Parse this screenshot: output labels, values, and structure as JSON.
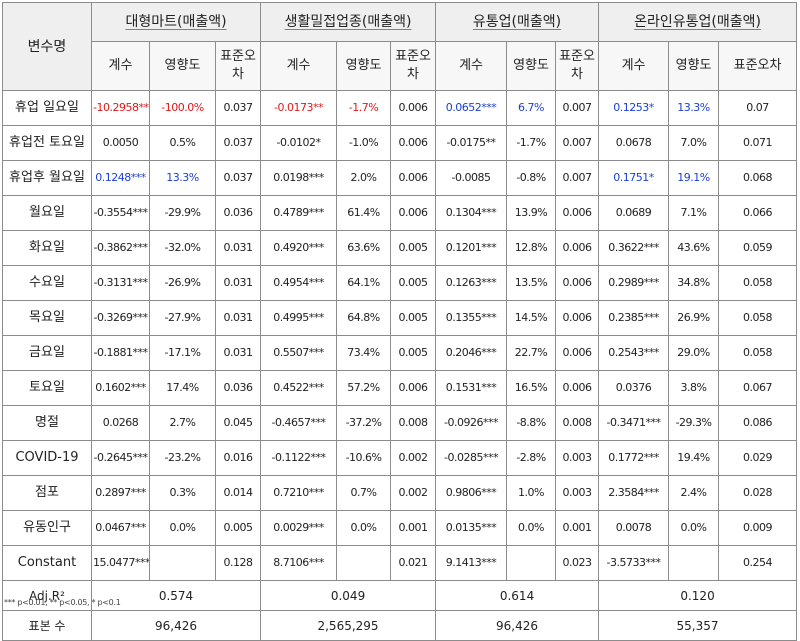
{
  "headers": {
    "variable": "변수명",
    "groups": [
      "대형마트(매출액)",
      "생활밀접업종(매출액)",
      "유통업(매출액)",
      "온라인유통업(매출액)"
    ],
    "coef": "계수",
    "effect_large": "영향도",
    "effect_split": "영향도",
    "se": "표준오차"
  },
  "rows": [
    {
      "label": "휴업 일요일",
      "cells": [
        [
          "-10.2958***",
          "red"
        ],
        [
          "-100.0%",
          "red"
        ],
        [
          "0.037",
          ""
        ],
        [
          "-0.0173**",
          "red"
        ],
        [
          "-1.7%",
          "red"
        ],
        [
          "0.006",
          ""
        ],
        [
          "0.0652***",
          "blue"
        ],
        [
          "6.7%",
          "blue"
        ],
        [
          "0.007",
          ""
        ],
        [
          "0.1253*",
          "blue"
        ],
        [
          "13.3%",
          "blue"
        ],
        [
          "0.07",
          ""
        ]
      ]
    },
    {
      "label": "휴업전 토요일",
      "cells": [
        [
          "0.0050",
          ""
        ],
        [
          "0.5%",
          ""
        ],
        [
          "0.037",
          ""
        ],
        [
          "-0.0102*",
          ""
        ],
        [
          "-1.0%",
          ""
        ],
        [
          "0.006",
          ""
        ],
        [
          "-0.0175**",
          ""
        ],
        [
          "-1.7%",
          ""
        ],
        [
          "0.007",
          ""
        ],
        [
          "0.0678",
          ""
        ],
        [
          "7.0%",
          ""
        ],
        [
          "0.071",
          ""
        ]
      ]
    },
    {
      "label": "휴업후 월요일",
      "cells": [
        [
          "0.1248***",
          "blue"
        ],
        [
          "13.3%",
          "blue"
        ],
        [
          "0.037",
          ""
        ],
        [
          "0.0198***",
          ""
        ],
        [
          "2.0%",
          ""
        ],
        [
          "0.006",
          ""
        ],
        [
          "-0.0085",
          ""
        ],
        [
          "-0.8%",
          ""
        ],
        [
          "0.007",
          ""
        ],
        [
          "0.1751*",
          "blue"
        ],
        [
          "19.1%",
          "blue"
        ],
        [
          "0.068",
          ""
        ]
      ]
    },
    {
      "label": "월요일",
      "cells": [
        [
          "-0.3554***",
          ""
        ],
        [
          "-29.9%",
          ""
        ],
        [
          "0.036",
          ""
        ],
        [
          "0.4789***",
          ""
        ],
        [
          "61.4%",
          ""
        ],
        [
          "0.006",
          ""
        ],
        [
          "0.1304***",
          ""
        ],
        [
          "13.9%",
          ""
        ],
        [
          "0.006",
          ""
        ],
        [
          "0.0689",
          ""
        ],
        [
          "7.1%",
          ""
        ],
        [
          "0.066",
          ""
        ]
      ]
    },
    {
      "label": "화요일",
      "cells": [
        [
          "-0.3862***",
          ""
        ],
        [
          "-32.0%",
          ""
        ],
        [
          "0.031",
          ""
        ],
        [
          "0.4920***",
          ""
        ],
        [
          "63.6%",
          ""
        ],
        [
          "0.005",
          ""
        ],
        [
          "0.1201***",
          ""
        ],
        [
          "12.8%",
          ""
        ],
        [
          "0.006",
          ""
        ],
        [
          "0.3622***",
          ""
        ],
        [
          "43.6%",
          ""
        ],
        [
          "0.059",
          ""
        ]
      ]
    },
    {
      "label": "수요일",
      "cells": [
        [
          "-0.3131***",
          ""
        ],
        [
          "-26.9%",
          ""
        ],
        [
          "0.031",
          ""
        ],
        [
          "0.4954***",
          ""
        ],
        [
          "64.1%",
          ""
        ],
        [
          "0.005",
          ""
        ],
        [
          "0.1263***",
          ""
        ],
        [
          "13.5%",
          ""
        ],
        [
          "0.006",
          ""
        ],
        [
          "0.2989***",
          ""
        ],
        [
          "34.8%",
          ""
        ],
        [
          "0.058",
          ""
        ]
      ]
    },
    {
      "label": "목요일",
      "cells": [
        [
          "-0.3269***",
          ""
        ],
        [
          "-27.9%",
          ""
        ],
        [
          "0.031",
          ""
        ],
        [
          "0.4995***",
          ""
        ],
        [
          "64.8%",
          ""
        ],
        [
          "0.005",
          ""
        ],
        [
          "0.1355***",
          ""
        ],
        [
          "14.5%",
          ""
        ],
        [
          "0.006",
          ""
        ],
        [
          "0.2385***",
          ""
        ],
        [
          "26.9%",
          ""
        ],
        [
          "0.058",
          ""
        ]
      ]
    },
    {
      "label": "금요일",
      "cells": [
        [
          "-0.1881***",
          ""
        ],
        [
          "-17.1%",
          ""
        ],
        [
          "0.031",
          ""
        ],
        [
          "0.5507***",
          ""
        ],
        [
          "73.4%",
          ""
        ],
        [
          "0.005",
          ""
        ],
        [
          "0.2046***",
          ""
        ],
        [
          "22.7%",
          ""
        ],
        [
          "0.006",
          ""
        ],
        [
          "0.2543***",
          ""
        ],
        [
          "29.0%",
          ""
        ],
        [
          "0.058",
          ""
        ]
      ]
    },
    {
      "label": "토요일",
      "cells": [
        [
          "0.1602***",
          ""
        ],
        [
          "17.4%",
          ""
        ],
        [
          "0.036",
          ""
        ],
        [
          "0.4522***",
          ""
        ],
        [
          "57.2%",
          ""
        ],
        [
          "0.006",
          ""
        ],
        [
          "0.1531***",
          ""
        ],
        [
          "16.5%",
          ""
        ],
        [
          "0.006",
          ""
        ],
        [
          "0.0376",
          ""
        ],
        [
          "3.8%",
          ""
        ],
        [
          "0.067",
          ""
        ]
      ]
    },
    {
      "label": "명절",
      "cells": [
        [
          "0.0268",
          ""
        ],
        [
          "2.7%",
          ""
        ],
        [
          "0.045",
          ""
        ],
        [
          "-0.4657***",
          ""
        ],
        [
          "-37.2%",
          ""
        ],
        [
          "0.008",
          ""
        ],
        [
          "-0.0926***",
          ""
        ],
        [
          "-8.8%",
          ""
        ],
        [
          "0.008",
          ""
        ],
        [
          "-0.3471***",
          ""
        ],
        [
          "-29.3%",
          ""
        ],
        [
          "0.086",
          ""
        ]
      ]
    },
    {
      "label": "COVID-19",
      "cells": [
        [
          "-0.2645***",
          ""
        ],
        [
          "-23.2%",
          ""
        ],
        [
          "0.016",
          ""
        ],
        [
          "-0.1122***",
          ""
        ],
        [
          "-10.6%",
          ""
        ],
        [
          "0.002",
          ""
        ],
        [
          "-0.0285***",
          ""
        ],
        [
          "-2.8%",
          ""
        ],
        [
          "0.003",
          ""
        ],
        [
          "0.1772***",
          ""
        ],
        [
          "19.4%",
          ""
        ],
        [
          "0.029",
          ""
        ]
      ]
    },
    {
      "label": "점포",
      "cells": [
        [
          "0.2897***",
          ""
        ],
        [
          "0.3%",
          ""
        ],
        [
          "0.014",
          ""
        ],
        [
          "0.7210***",
          ""
        ],
        [
          "0.7%",
          ""
        ],
        [
          "0.002",
          ""
        ],
        [
          "0.9806***",
          ""
        ],
        [
          "1.0%",
          ""
        ],
        [
          "0.003",
          ""
        ],
        [
          "2.3584***",
          ""
        ],
        [
          "2.4%",
          ""
        ],
        [
          "0.028",
          ""
        ]
      ]
    },
    {
      "label": "유동인구",
      "cells": [
        [
          "0.0467***",
          ""
        ],
        [
          "0.0%",
          ""
        ],
        [
          "0.005",
          ""
        ],
        [
          "0.0029***",
          ""
        ],
        [
          "0.0%",
          ""
        ],
        [
          "0.001",
          ""
        ],
        [
          "0.0135***",
          ""
        ],
        [
          "0.0%",
          ""
        ],
        [
          "0.001",
          ""
        ],
        [
          "0.0078",
          ""
        ],
        [
          "0.0%",
          ""
        ],
        [
          "0.009",
          ""
        ]
      ]
    },
    {
      "label": "Constant",
      "cells": [
        [
          "15.0477***",
          ""
        ],
        [
          "",
          ""
        ],
        [
          "0.128",
          ""
        ],
        [
          "8.7106***",
          ""
        ],
        [
          "",
          ""
        ],
        [
          "0.021",
          ""
        ],
        [
          "9.1413***",
          ""
        ],
        [
          "",
          ""
        ],
        [
          "0.023",
          ""
        ],
        [
          "-3.5733***",
          ""
        ],
        [
          "",
          ""
        ],
        [
          "0.254",
          ""
        ]
      ]
    }
  ],
  "footer": [
    {
      "label": "Adj.R²",
      "values": [
        "0.574",
        "0.049",
        "0.614",
        "0.120"
      ]
    },
    {
      "label": "표본 수",
      "values": [
        "96,426",
        "2,565,295",
        "96,426",
        "55,357"
      ]
    }
  ],
  "note": "*** p<0.01, ** p<0.05, * p<0.1"
}
